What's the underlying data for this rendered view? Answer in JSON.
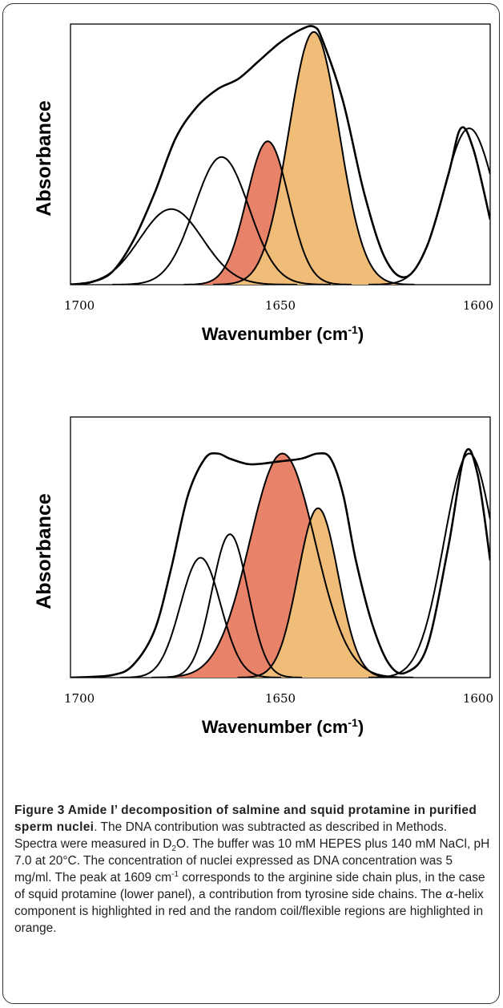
{
  "chart_data": [
    {
      "type": "line",
      "panel": "upper",
      "ylabel": "Absorbance",
      "xlabel_main": "Wavenumber (cm",
      "xlabel_sup": "-1",
      "xlabel_close": ")",
      "x_reversed": true,
      "xlim": [
        1700,
        1600
      ],
      "ylim": [
        0,
        1
      ],
      "x_ticks": [
        "1700",
        "1650",
        "1600"
      ],
      "x_tick_values": [
        1700,
        1650,
        1600
      ],
      "grid": false,
      "composite": {
        "name": "",
        "x": [
          1700,
          1695,
          1690,
          1685,
          1680,
          1675,
          1670,
          1665,
          1660,
          1655,
          1650,
          1645,
          1642,
          1640,
          1635,
          1630,
          1625,
          1620,
          1615,
          1610,
          1607,
          1604,
          1600
        ],
        "y": [
          0.0,
          0.01,
          0.05,
          0.17,
          0.35,
          0.56,
          0.68,
          0.75,
          0.79,
          0.86,
          0.93,
          0.98,
          0.99,
          0.94,
          0.7,
          0.35,
          0.1,
          0.03,
          0.15,
          0.42,
          0.6,
          0.52,
          0.25
        ]
      },
      "components": [
        {
          "center": 1676,
          "height": 0.29,
          "sigma": 7.5,
          "fill": "none"
        },
        {
          "center": 1664,
          "height": 0.49,
          "sigma": 6.5,
          "fill": "none"
        },
        {
          "center": 1653,
          "height": 0.55,
          "sigma": 5.0,
          "fill": "#e8836a"
        },
        {
          "center": 1642,
          "height": 0.97,
          "sigma": 6.0,
          "fill": "#f0bd78"
        },
        {
          "center": 1605,
          "height": 0.6,
          "sigma": 6.0,
          "fill": "none"
        }
      ]
    },
    {
      "type": "line",
      "panel": "lower",
      "ylabel": "Absorbance",
      "xlabel_main": "Wavenumber (cm",
      "xlabel_sup": "-1",
      "xlabel_close": ")",
      "x_reversed": true,
      "xlim": [
        1700,
        1600
      ],
      "ylim": [
        0,
        1
      ],
      "x_ticks": [
        "1700",
        "1650",
        "1600"
      ],
      "x_tick_values": [
        1700,
        1650,
        1600
      ],
      "grid": false,
      "composite": {
        "name": "",
        "x": [
          1700,
          1690,
          1685,
          1680,
          1676,
          1672,
          1668,
          1665,
          1662,
          1658,
          1655,
          1650,
          1645,
          1641,
          1638,
          1635,
          1632,
          1628,
          1624,
          1620,
          1615,
          1610,
          1606,
          1603,
          1600
        ],
        "y": [
          0.0,
          0.01,
          0.05,
          0.18,
          0.42,
          0.7,
          0.84,
          0.86,
          0.84,
          0.82,
          0.82,
          0.83,
          0.84,
          0.86,
          0.84,
          0.7,
          0.45,
          0.2,
          0.05,
          0.02,
          0.12,
          0.5,
          0.86,
          0.78,
          0.45
        ]
      },
      "components": [
        {
          "center": 1669,
          "height": 0.46,
          "sigma": 4.8,
          "fill": "none"
        },
        {
          "center": 1662,
          "height": 0.55,
          "sigma": 4.3,
          "fill": "none"
        },
        {
          "center": 1649.5,
          "height": 0.86,
          "sigma": 7.8,
          "fill": "#e8836a"
        },
        {
          "center": 1641,
          "height": 0.65,
          "sigma": 4.8,
          "fill": "#f0bd78"
        },
        {
          "center": 1605,
          "height": 0.86,
          "sigma": 6.0,
          "fill": "none"
        }
      ]
    }
  ],
  "caption": {
    "title": "Figure 3 Amide I’ decomposition of salmine and squid protamine in purified sperm nuclei",
    "period": ".",
    "t1": " The DNA contribution was subtracted as described in Methods. Spectra were measured in D",
    "sub2": "2",
    "t2": "O. The buffer was 10 mM HEPES plus 140 mM NaCl, pH 7.0 at 20°C. The concentration of nuclei expressed as DNA concentration was 5 mg/ml. The peak at 1609 cm",
    "sup1": "-1",
    "t3": " corresponds to the arginine side chain plus, in the case of squid protamine (lower panel), a contribution from tyrosine side chains. The ",
    "alpha": "α",
    "t4": "-helix component is highlighted in red and the random coil/flexible regions are highlighted in orange."
  }
}
